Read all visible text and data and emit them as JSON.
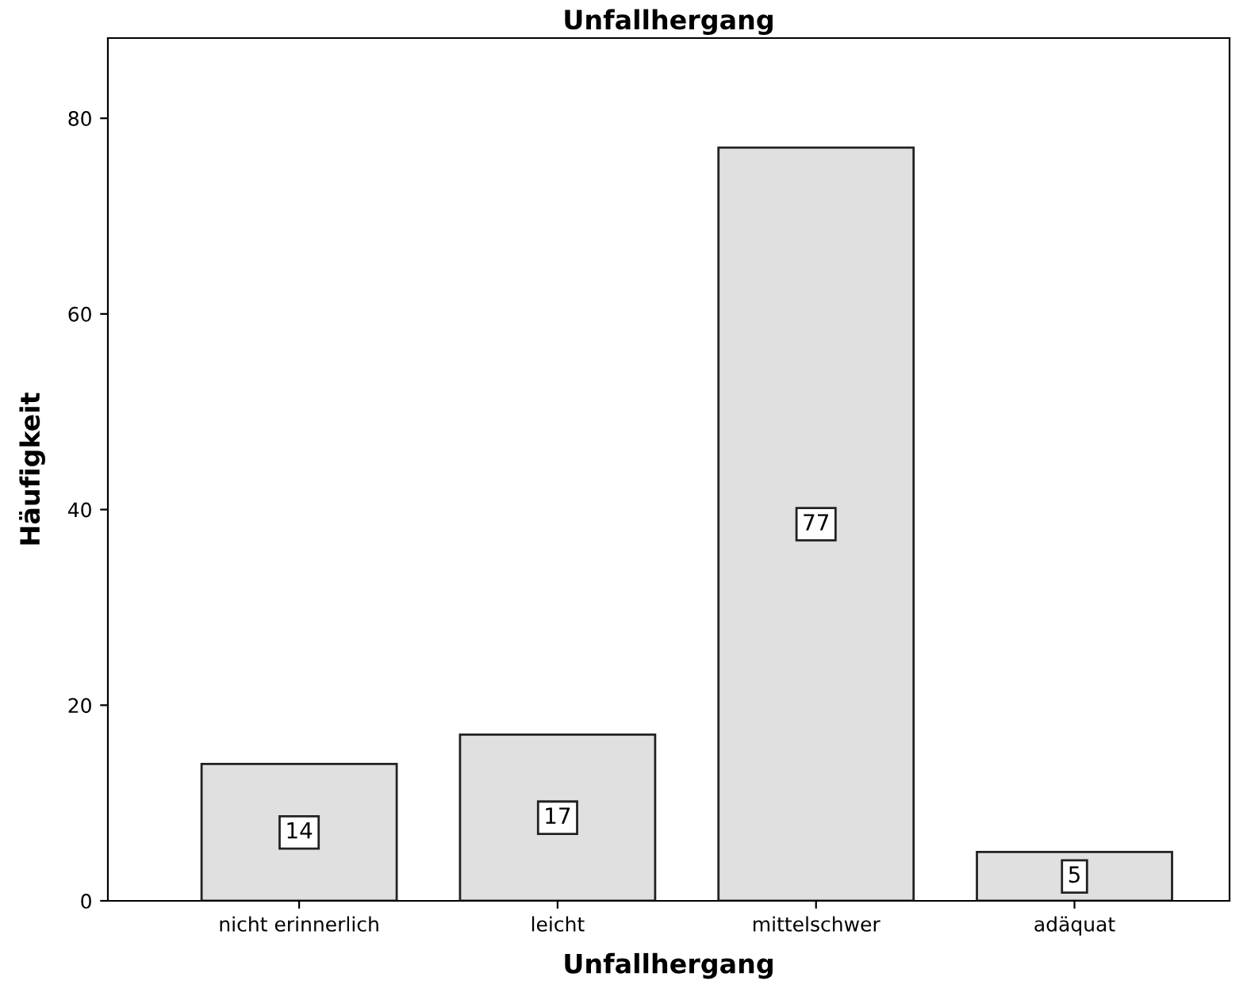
{
  "chart_data": {
    "type": "bar",
    "title": "Unfallhergang",
    "xlabel": "Unfallhergang",
    "ylabel": "Häufigkeit",
    "categories": [
      "nicht erinnerlich",
      "leicht",
      "mittelschwer",
      "adäquat"
    ],
    "values": [
      14,
      17,
      77,
      5
    ],
    "color": "#e0e0e0",
    "ylim": [
      0,
      88.2
    ],
    "yticks": [
      0,
      20,
      40,
      60,
      80
    ],
    "grid": false,
    "data_labels": true
  }
}
